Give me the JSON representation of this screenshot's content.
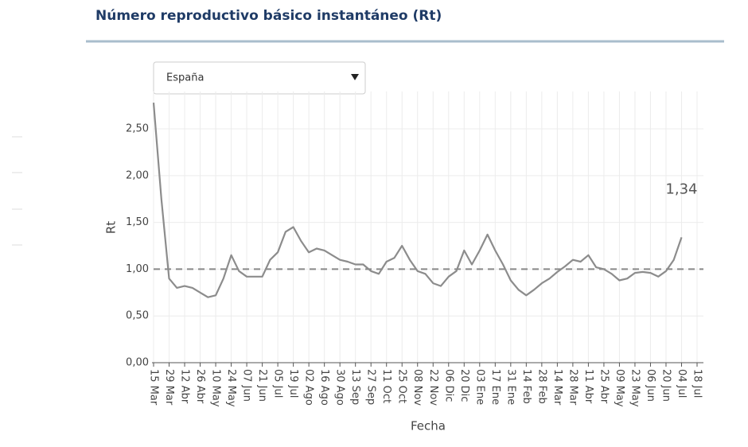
{
  "chart_data": {
    "type": "line",
    "title": "Número reproductivo básico instantáneo (Rt)",
    "selector": "España",
    "x_label": "Fecha",
    "y_label": "Rt",
    "categories": [
      "15 Mar",
      null,
      "29 Mar",
      null,
      "12 Abr",
      null,
      "26 Abr",
      null,
      "10 May",
      null,
      "24 May",
      null,
      "07 Jun",
      null,
      "21 Jun",
      null,
      "05 Jul",
      null,
      "19 Jul",
      null,
      "02 Ago",
      null,
      "16 Ago",
      null,
      "30 Ago",
      null,
      "13 Sep",
      null,
      "27 Sep",
      null,
      "11 Oct",
      null,
      "25 Oct",
      null,
      "08 Nov",
      null,
      "22 Nov",
      null,
      "06 Dic",
      null,
      "20 Dic",
      null,
      "03 Ene",
      null,
      "17 Ene",
      null,
      "31 Ene",
      null,
      "14 Feb",
      null,
      "28 Feb",
      null,
      "14 Mar",
      null,
      "28 Mar",
      null,
      "11 Abr",
      null,
      "25 Abr",
      null,
      "09 May",
      null,
      "23 May",
      null,
      "06 Jun",
      null,
      "20 Jun",
      null,
      "04 Jul",
      null,
      "18 Jul"
    ],
    "values": [
      2.78,
      1.75,
      0.9,
      0.8,
      0.82,
      0.8,
      0.75,
      0.7,
      0.72,
      0.9,
      1.15,
      0.98,
      0.92,
      0.92,
      0.92,
      1.1,
      1.18,
      1.4,
      1.45,
      1.3,
      1.18,
      1.22,
      1.2,
      1.15,
      1.1,
      1.08,
      1.05,
      1.05,
      0.98,
      0.95,
      1.08,
      1.12,
      1.25,
      1.1,
      0.98,
      0.95,
      0.85,
      0.82,
      0.92,
      0.98,
      1.2,
      1.05,
      1.2,
      1.37,
      1.2,
      1.05,
      0.88,
      0.78,
      0.72,
      0.78,
      0.85,
      0.9,
      0.97,
      1.03,
      1.1,
      1.08,
      1.15,
      1.02,
      1.0,
      0.95,
      0.88,
      0.9,
      0.96,
      0.97,
      0.96,
      0.92,
      0.98,
      1.1,
      1.34,
      null,
      null
    ],
    "value_labels": [
      null,
      null,
      null,
      null,
      null,
      null,
      null,
      null,
      null,
      null,
      null,
      null,
      null,
      null,
      null,
      null,
      null,
      null,
      null,
      null,
      null,
      null,
      null,
      null,
      null,
      null,
      null,
      null,
      null,
      null,
      null,
      null,
      null,
      null,
      null,
      null,
      null,
      null,
      null,
      null,
      null,
      null,
      null,
      null,
      null,
      null,
      null,
      null,
      null,
      null,
      null,
      null,
      null,
      null,
      null,
      null,
      null,
      null,
      null,
      null,
      null,
      null,
      null,
      null,
      null,
      null,
      null,
      null,
      "1,34",
      null,
      null
    ],
    "color": "#8c8c8c",
    "reference_line": 1,
    "ylim": [
      0,
      2.9
    ],
    "yticks": [
      {
        "value": 0,
        "label": "0,00"
      },
      {
        "value": 0.5,
        "label": "0,50"
      },
      {
        "value": 1,
        "label": "1,00"
      },
      {
        "value": 1.5,
        "label": "1,50"
      },
      {
        "value": 2,
        "label": "2,00"
      },
      {
        "value": 2.5,
        "label": "2,50"
      }
    ],
    "grid": true
  }
}
